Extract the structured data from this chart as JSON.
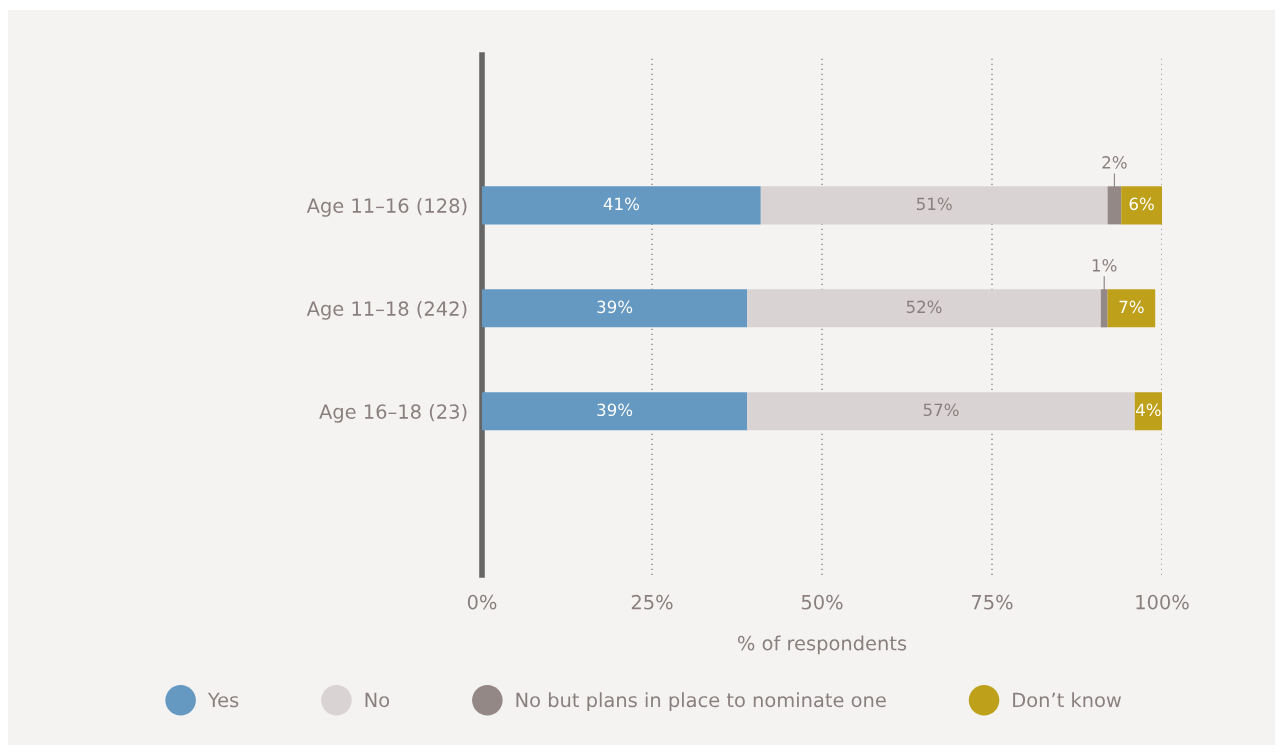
{
  "chart_data": {
    "type": "bar",
    "orientation": "horizontal",
    "stacked": true,
    "categories": [
      "Age 11–16 (128)",
      "Age 11–18 (242)",
      "Age 16–18 (23)"
    ],
    "xlabel": "% of respondents",
    "xlim": [
      0,
      100
    ],
    "xticks": [
      {
        "value": 0,
        "label": "0%"
      },
      {
        "value": 25,
        "label": "25%"
      },
      {
        "value": 50,
        "label": "50%"
      },
      {
        "value": 75,
        "label": "75%"
      },
      {
        "value": 100,
        "label": "100%"
      }
    ],
    "grid": "x",
    "legend": "bottom",
    "series": [
      {
        "name": "Yes",
        "color": "#6699c2",
        "values": [
          41,
          39,
          39
        ],
        "value_labels": [
          "41%",
          "39%",
          "39%"
        ]
      },
      {
        "name": "No",
        "color": "#d9d3d3",
        "values": [
          51,
          52,
          57
        ],
        "value_labels": [
          "51%",
          "52%",
          "57%"
        ]
      },
      {
        "name": "No but plans in place to nominate one",
        "color": "#948886",
        "values": [
          2,
          1,
          0
        ],
        "value_labels": [
          "2%",
          "1%",
          null
        ]
      },
      {
        "name": "Don’t know",
        "color": "#bfa01a",
        "values": [
          6,
          7,
          4
        ],
        "value_labels": [
          "6%",
          "7%",
          "4%"
        ]
      }
    ]
  }
}
